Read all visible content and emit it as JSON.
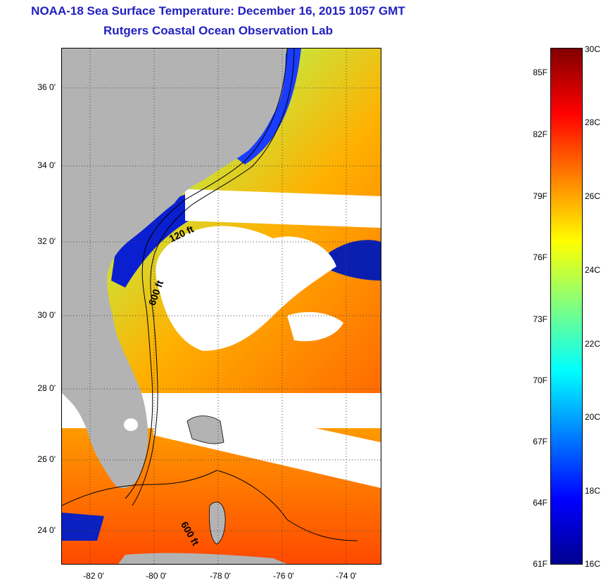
{
  "title": {
    "line1": "NOAA-18 Sea Surface Temperature:  December 16, 2015 1057 GMT",
    "line2": "Rutgers Coastal Ocean Observation Lab"
  },
  "map": {
    "lat_ticks": [
      "36 0'",
      "34 0'",
      "32 0'",
      "30 0'",
      "28 0'",
      "26 0'",
      "24 0'"
    ],
    "lon_ticks": [
      "-82 0'",
      "-80 0'",
      "-78 0'",
      "-76 0'",
      "-74 0'"
    ],
    "contour_labels": [
      "120 ft",
      "600 ft",
      "600 ft"
    ]
  },
  "colorbar": {
    "celsius_labels": [
      "30C",
      "28C",
      "26C",
      "24C",
      "22C",
      "20C",
      "18C",
      "16C"
    ],
    "fahrenheit_labels": [
      "85F",
      "82F",
      "79F",
      "76F",
      "73F",
      "70F",
      "67F",
      "64F",
      "61F"
    ],
    "colors": [
      "#00008f",
      "#0000ff",
      "#0080ff",
      "#00ffff",
      "#80ff80",
      "#ffff00",
      "#ff8000",
      "#ff0000",
      "#800000"
    ]
  }
}
